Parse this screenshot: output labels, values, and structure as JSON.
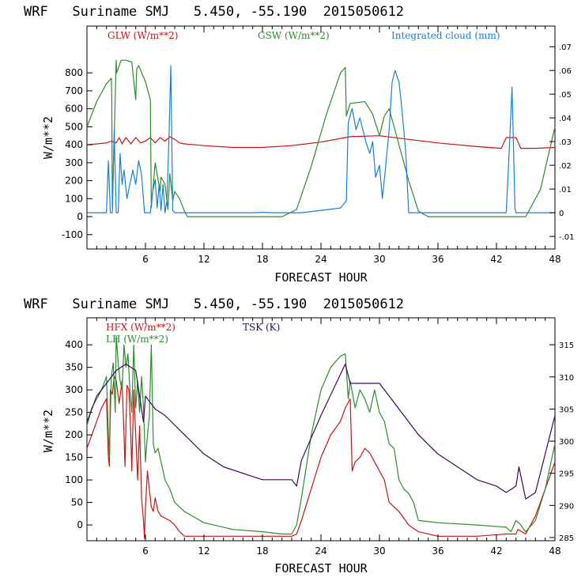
{
  "colors": {
    "red": "#c81414",
    "green": "#2e8b2e",
    "blue": "#1a7fd4",
    "purple": "#3a0a5a"
  },
  "chart_data": [
    {
      "type": "line",
      "title": "WRF   Suriname SMJ   5.450, -55.190  2015050612",
      "xlabel": "FORECAST HOUR",
      "ylabel": "W/m**2",
      "xlim": [
        0,
        48
      ],
      "ylim": [
        -180,
        1060
      ],
      "yticks": [
        -100,
        0,
        100,
        200,
        300,
        400,
        500,
        600,
        700,
        800
      ],
      "xticks": [
        6,
        12,
        18,
        24,
        30,
        36,
        42,
        48
      ],
      "y2lim": [
        -0.0153,
        0.0787
      ],
      "y2ticks": [
        -0.01,
        0,
        0.01,
        0.02,
        0.03,
        0.04,
        0.05,
        0.06,
        0.07
      ],
      "y2ticklabels": [
        "-.01",
        "0",
        ".01",
        ".02",
        ".03",
        ".04",
        ".05",
        ".06",
        ".07"
      ],
      "series": [
        {
          "name": "GLW (W/m**2)",
          "color": "red",
          "axis": "left",
          "x": [
            0,
            2,
            2.5,
            3,
            3.3,
            3.6,
            4,
            4.5,
            5,
            5.5,
            6,
            6.5,
            7,
            7.5,
            8,
            8.5,
            9,
            9.5,
            10,
            12,
            15,
            18,
            21,
            24,
            27,
            30,
            33,
            36,
            40,
            42.5,
            43,
            44,
            44.5,
            46,
            48
          ],
          "y": [
            400,
            410,
            420,
            410,
            440,
            405,
            440,
            405,
            440,
            410,
            420,
            440,
            410,
            440,
            420,
            445,
            430,
            410,
            405,
            395,
            385,
            385,
            395,
            415,
            445,
            450,
            430,
            410,
            390,
            380,
            440,
            440,
            380,
            380,
            385
          ]
        },
        {
          "name": "GSW (W/m**2)",
          "color": "green",
          "axis": "left",
          "x": [
            0,
            1,
            2,
            2.5,
            2.55,
            2.6,
            3,
            3.05,
            3.5,
            4,
            4.6,
            5,
            5.1,
            5.3,
            6,
            6.5,
            6.6,
            7,
            7.5,
            7.6,
            8,
            8.3,
            8.5,
            8.8,
            9,
            9.5,
            10,
            10.3,
            10.6,
            20,
            21.5,
            23,
            24.5,
            26,
            26.5,
            26.6,
            27,
            28.5,
            29.3,
            30,
            30.5,
            31,
            32,
            33,
            34,
            35,
            43,
            44,
            45,
            46.5,
            48
          ],
          "y": [
            500,
            640,
            740,
            770,
            660,
            50,
            870,
            800,
            870,
            870,
            860,
            650,
            820,
            840,
            750,
            650,
            50,
            300,
            140,
            220,
            180,
            40,
            240,
            90,
            140,
            100,
            30,
            0,
            0,
            0,
            40,
            280,
            560,
            800,
            830,
            560,
            630,
            640,
            570,
            450,
            560,
            600,
            400,
            200,
            30,
            0,
            0,
            0,
            0,
            150,
            500
          ]
        },
        {
          "name": "Integrated cloud (mm)",
          "color": "blue",
          "axis": "right",
          "x": [
            0,
            2,
            2.2,
            2.4,
            2.6,
            2.8,
            3,
            3.2,
            3.4,
            3.6,
            3.8,
            4.1,
            4.4,
            4.7,
            5,
            5.3,
            5.6,
            5.9,
            6.2,
            6.5,
            6.7,
            7,
            7.2,
            7.4,
            7.6,
            7.8,
            8,
            8.2,
            8.4,
            8.6,
            8.8,
            9,
            12,
            17,
            18,
            19,
            22,
            23,
            26,
            26.6,
            26.8,
            27.2,
            27.6,
            28,
            28.3,
            28.6,
            29,
            29.3,
            29.6,
            30,
            30.3,
            30.6,
            31,
            31.3,
            31.6,
            32,
            32.2,
            32.5,
            32.7,
            33,
            42,
            43,
            43.3,
            43.6,
            43.9,
            44,
            48
          ],
          "y": [
            0,
            0,
            0.022,
            0,
            0,
            0.035,
            0,
            0,
            0.025,
            0.012,
            0.018,
            0.006,
            0.012,
            0.018,
            0.012,
            0.022,
            0.016,
            0,
            0,
            0,
            0.008,
            0.014,
            0.002,
            0.012,
            0.001,
            0.012,
            0,
            0.005,
            0.03,
            0.062,
            0.001,
            0,
            0,
            0,
            0.0002,
            0,
            0,
            0.0005,
            0.002,
            0.005,
            0.038,
            0.044,
            0.035,
            0.04,
            0.035,
            0.03,
            0.025,
            0.03,
            0.015,
            0.02,
            0.006,
            0.018,
            0.035,
            0.055,
            0.06,
            0.055,
            0.048,
            0.035,
            0.025,
            0,
            0,
            0,
            0.025,
            0.053,
            0.002,
            0,
            0
          ]
        }
      ],
      "legend": [
        "GLW (W/m**2)",
        "GSW (W/m**2)",
        "Integrated cloud (mm)"
      ]
    },
    {
      "type": "line",
      "title": "WRF   Suriname SMJ   5.450, -55.190  2015050612",
      "xlabel": "FORECAST HOUR",
      "ylabel": "W/m**2",
      "xlim": [
        0,
        48
      ],
      "ylim": [
        -35,
        460
      ],
      "yticks": [
        0,
        50,
        100,
        150,
        200,
        250,
        300,
        350,
        400
      ],
      "xticks": [
        6,
        12,
        18,
        24,
        30,
        36,
        42,
        48
      ],
      "y2lim": [
        284.5,
        319.2
      ],
      "y2ticks": [
        285,
        290,
        295,
        300,
        305,
        310,
        315
      ],
      "y2ticklabels": [
        "285",
        "290",
        "295",
        "300",
        "305",
        "310",
        "315"
      ],
      "series": [
        {
          "name": "HFX (W/m**2)",
          "color": "red",
          "axis": "left",
          "x": [
            0,
            0.5,
            1,
            1.5,
            2,
            2.2,
            2.3,
            2.4,
            2.6,
            2.8,
            3,
            3.3,
            3.6,
            3.8,
            3.9,
            4.1,
            4.3,
            4.5,
            4.6,
            4.8,
            5,
            5.2,
            5.4,
            5.6,
            5.8,
            5.9,
            6,
            6.2,
            6.4,
            6.6,
            6.8,
            7,
            7.3,
            7.6,
            8,
            8.5,
            9,
            9.5,
            10,
            11,
            12,
            15,
            18,
            20,
            21,
            21.5,
            22,
            23,
            24,
            25,
            26,
            26.5,
            27,
            27.2,
            27.5,
            28,
            28.5,
            29,
            29.5,
            30,
            30.5,
            31,
            32,
            33,
            34,
            36,
            40,
            43,
            44,
            44.2,
            45,
            46,
            47,
            48
          ],
          "y": [
            170,
            200,
            230,
            260,
            280,
            150,
            130,
            300,
            290,
            330,
            320,
            270,
            320,
            200,
            130,
            310,
            300,
            200,
            120,
            300,
            200,
            100,
            220,
            60,
            10,
            -30,
            40,
            120,
            80,
            40,
            30,
            60,
            30,
            20,
            15,
            10,
            0,
            -15,
            -25,
            -25,
            -25,
            -25,
            -25,
            -25,
            -25,
            -20,
            10,
            80,
            150,
            200,
            230,
            260,
            280,
            120,
            140,
            150,
            170,
            160,
            140,
            120,
            100,
            50,
            30,
            0,
            -15,
            -25,
            -25,
            -20,
            -20,
            -10,
            -20,
            20,
            80,
            140
          ]
        },
        {
          "name": "LH (W/m**2)",
          "color": "green",
          "axis": "left",
          "x": [
            0,
            0.5,
            1,
            1.5,
            2,
            2.2,
            2.3,
            2.5,
            2.7,
            2.9,
            3,
            3.2,
            3.4,
            3.6,
            3.8,
            4,
            4.2,
            4.4,
            4.6,
            4.8,
            5,
            5.2,
            5.4,
            5.6,
            5.8,
            6,
            6.2,
            6.4,
            6.6,
            6.8,
            7,
            7.3,
            7.6,
            8,
            8.5,
            9,
            10,
            12,
            15,
            18,
            20,
            21,
            21.5,
            22,
            23,
            24,
            25,
            26,
            26.5,
            26.8,
            27,
            27.5,
            28,
            28.5,
            29,
            29.5,
            30,
            30.5,
            31,
            31.5,
            32,
            32.5,
            33,
            33.5,
            34,
            36,
            40,
            43,
            43.5,
            44,
            44.5,
            45,
            46,
            47,
            48
          ],
          "y": [
            220,
            260,
            280,
            300,
            330,
            200,
            150,
            330,
            360,
            250,
            420,
            360,
            320,
            300,
            400,
            350,
            380,
            300,
            250,
            400,
            260,
            320,
            250,
            330,
            260,
            140,
            200,
            240,
            400,
            180,
            160,
            170,
            140,
            100,
            80,
            50,
            30,
            5,
            -10,
            -15,
            -20,
            -20,
            0,
            60,
            200,
            300,
            350,
            375,
            380,
            280,
            320,
            260,
            300,
            280,
            250,
            300,
            250,
            230,
            180,
            170,
            100,
            80,
            70,
            50,
            10,
            5,
            0,
            -5,
            -15,
            10,
            0,
            -15,
            10,
            80,
            180
          ]
        },
        {
          "name": "TSK (K)",
          "color": "purple",
          "axis": "right",
          "x": [
            0,
            0.5,
            1,
            2,
            3,
            4,
            5,
            5.8,
            6,
            6.5,
            7,
            8,
            10,
            12,
            14,
            16,
            18,
            21,
            21.5,
            22,
            24,
            26.5,
            27,
            30,
            31,
            32,
            34,
            36,
            38,
            40,
            42,
            43,
            44,
            44.3,
            45,
            46,
            48
          ],
          "y": [
            303,
            305,
            307,
            309,
            311,
            312,
            311,
            303,
            307,
            306,
            305,
            304,
            301,
            298,
            296,
            295,
            294,
            294,
            293,
            297,
            304,
            312,
            309,
            309,
            307,
            305,
            301,
            298,
            296,
            294,
            293,
            292,
            293,
            296,
            291,
            292,
            304
          ]
        }
      ],
      "legend": [
        "HFX (W/m**2)",
        "LH (W/m**2)",
        "TSK (K)"
      ]
    }
  ]
}
